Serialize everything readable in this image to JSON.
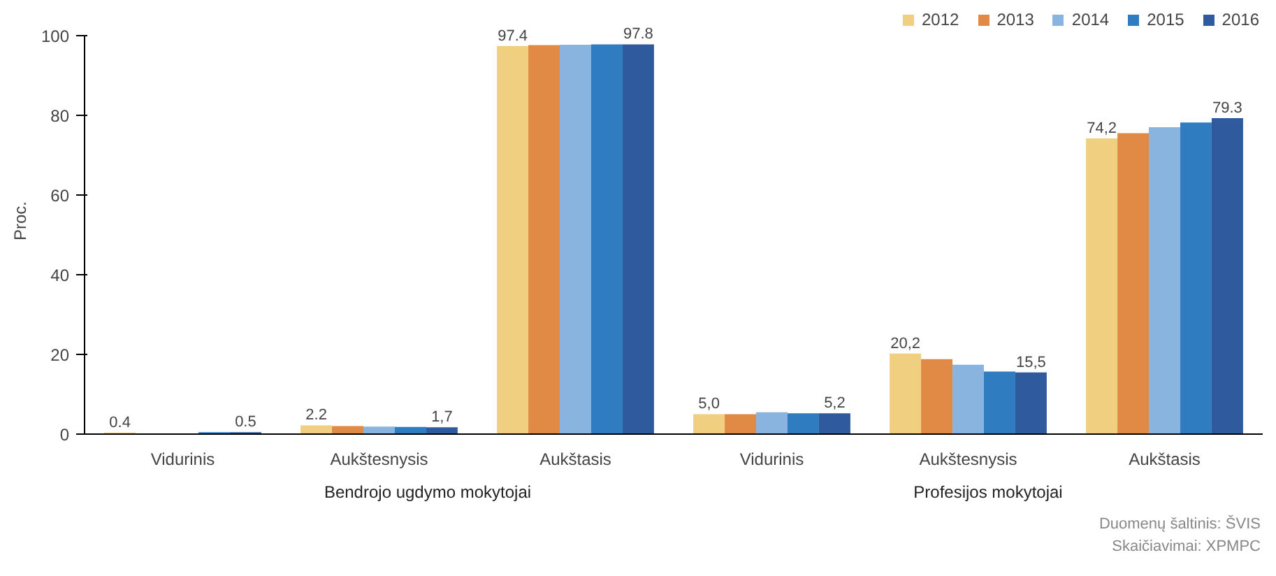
{
  "chart_data": {
    "type": "bar",
    "ylabel": "Proc.",
    "categories": [
      "Vidurinis",
      "Aukštesnysis",
      "Aukštasis",
      "Vidurinis",
      "Aukštesnysis",
      "Aukštasis"
    ],
    "ylim": [
      0,
      100
    ],
    "yticks": [
      0,
      20,
      40,
      60,
      80,
      100
    ],
    "grid": false,
    "legend": "top right",
    "series": [
      {
        "name": "2012",
        "color": "#f0d080",
        "values": [
          0.4,
          2.2,
          97.4,
          5.0,
          20.2,
          74.2
        ],
        "value_labels": [
          "0.4",
          "2.2",
          "97.4",
          "5,0",
          "20,2",
          "74,2"
        ]
      },
      {
        "name": "2013",
        "color": "#e08a45",
        "values": [
          null,
          2.0,
          97.6,
          5.0,
          18.8,
          75.5
        ],
        "value_labels": [
          null,
          null,
          null,
          null,
          null,
          null
        ]
      },
      {
        "name": "2014",
        "color": "#8ab4e0",
        "values": [
          null,
          1.9,
          97.7,
          5.5,
          17.4,
          77.0
        ],
        "value_labels": [
          null,
          null,
          null,
          null,
          null,
          null
        ]
      },
      {
        "name": "2015",
        "color": "#2f7cc0",
        "values": [
          0.5,
          1.8,
          97.8,
          5.2,
          15.7,
          78.2
        ],
        "value_labels": [
          null,
          null,
          null,
          null,
          null,
          null
        ]
      },
      {
        "name": "2016",
        "color": "#2f5b9e",
        "values": [
          0.5,
          1.7,
          97.8,
          5.2,
          15.5,
          79.3
        ],
        "value_labels": [
          "0.5",
          "1,7",
          "97.8",
          "5,2",
          "15,5",
          "79.3"
        ]
      }
    ],
    "annotations": [
      "Bendrojo ugdymo mokytojai",
      "Profesijos mokytojai",
      "Duomenų šaltinis: ŠVIS",
      "Skaičiavimai: XPMPC"
    ]
  }
}
